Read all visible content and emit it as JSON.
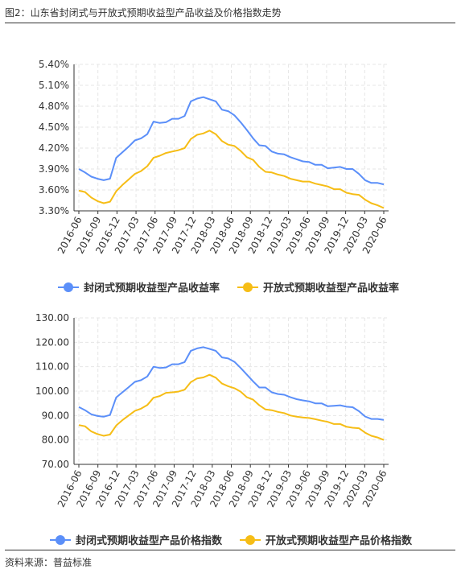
{
  "header": {
    "title": "图2：山东省封闭式与开放式预期收益型产品收益及价格指数走势"
  },
  "footer": {
    "source": "资料来源：普益标准"
  },
  "colors": {
    "closed": "#5b8ff9",
    "open": "#f6bd16",
    "grid": "#e6e6e6",
    "axis": "#333333"
  },
  "chart_data": [
    {
      "type": "line",
      "title": "",
      "xlabel": "",
      "ylabel": "",
      "ylim": [
        3.3,
        5.4
      ],
      "y_ticks": [
        "3.30%",
        "3.60%",
        "3.90%",
        "4.20%",
        "4.50%",
        "4.80%",
        "5.10%",
        "5.40%"
      ],
      "x_ticks": [
        "2016-06",
        "2016-09",
        "2016-12",
        "2017-03",
        "2017-06",
        "2017-09",
        "2017-12",
        "2018-03",
        "2018-06",
        "2018-09",
        "2018-12",
        "2019-03",
        "2019-06",
        "2019-09",
        "2019-12",
        "2020-03",
        "2020-06"
      ],
      "grid": true,
      "legend_position": "bottom",
      "series": [
        {
          "name": "封闭式预期收益型产品收益率",
          "values": [
            3.9,
            3.85,
            3.79,
            3.76,
            3.74,
            3.76,
            4.06,
            4.14,
            4.22,
            4.31,
            4.34,
            4.4,
            4.58,
            4.56,
            4.57,
            4.62,
            4.62,
            4.66,
            4.87,
            4.91,
            4.93,
            4.9,
            4.87,
            4.75,
            4.73,
            4.67,
            4.57,
            4.46,
            4.34,
            4.24,
            4.23,
            4.15,
            4.12,
            4.11,
            4.07,
            4.04,
            4.01,
            4.0,
            3.96,
            3.96,
            3.91,
            3.92,
            3.93,
            3.9,
            3.9,
            3.83,
            3.74,
            3.7,
            3.7,
            3.68
          ]
        },
        {
          "name": "开放式预期收益型产品收益率",
          "values": [
            3.59,
            3.57,
            3.49,
            3.44,
            3.41,
            3.43,
            3.58,
            3.67,
            3.75,
            3.83,
            3.87,
            3.94,
            4.06,
            4.09,
            4.13,
            4.15,
            4.17,
            4.2,
            4.33,
            4.39,
            4.41,
            4.45,
            4.4,
            4.3,
            4.25,
            4.23,
            4.16,
            4.07,
            4.03,
            3.93,
            3.86,
            3.85,
            3.82,
            3.8,
            3.76,
            3.74,
            3.72,
            3.72,
            3.69,
            3.67,
            3.65,
            3.61,
            3.61,
            3.56,
            3.54,
            3.53,
            3.46,
            3.41,
            3.38,
            3.34
          ]
        }
      ]
    },
    {
      "type": "line",
      "title": "",
      "xlabel": "",
      "ylabel": "",
      "ylim": [
        70,
        130
      ],
      "y_ticks": [
        "70.00",
        "80.00",
        "90.00",
        "100.00",
        "110.00",
        "120.00",
        "130.00"
      ],
      "x_ticks": [
        "2016-06",
        "2016-09",
        "2016-12",
        "2017-03",
        "2017-06",
        "2017-09",
        "2017-12",
        "2018-03",
        "2018-06",
        "2018-09",
        "2018-12",
        "2019-03",
        "2019-06",
        "2019-09",
        "2019-12",
        "2020-03",
        "2020-06"
      ],
      "grid": true,
      "legend_position": "bottom",
      "series": [
        {
          "name": "封闭式预期收益型产品价格指数",
          "values": [
            93.5,
            92.2,
            90.5,
            89.8,
            89.5,
            90.2,
            97.4,
            99.5,
            101.6,
            103.8,
            104.5,
            106.0,
            110.0,
            109.5,
            109.7,
            111.0,
            111.0,
            111.9,
            116.5,
            117.5,
            118.0,
            117.3,
            116.5,
            113.8,
            113.4,
            112.0,
            109.5,
            106.8,
            104.0,
            101.5,
            101.5,
            99.5,
            98.8,
            98.5,
            97.5,
            96.7,
            96.2,
            95.8,
            95.0,
            95.0,
            93.8,
            94.0,
            94.2,
            93.6,
            93.4,
            91.8,
            89.6,
            88.6,
            88.6,
            88.2
          ]
        },
        {
          "name": "开放式预期收益型产品价格指数",
          "values": [
            86.1,
            85.6,
            83.5,
            82.4,
            81.7,
            82.2,
            85.9,
            88.1,
            90.0,
            91.9,
            92.8,
            94.3,
            97.3,
            98.0,
            99.3,
            99.5,
            99.8,
            100.6,
            103.7,
            105.2,
            105.6,
            106.7,
            105.5,
            103.1,
            102.0,
            101.2,
            99.8,
            97.5,
            96.5,
            94.2,
            92.5,
            92.2,
            91.5,
            91.0,
            90.0,
            89.5,
            89.2,
            89.0,
            88.5,
            87.9,
            87.4,
            86.5,
            86.5,
            85.4,
            85.0,
            84.8,
            83.0,
            81.7,
            81.0,
            80.0
          ]
        }
      ]
    }
  ]
}
